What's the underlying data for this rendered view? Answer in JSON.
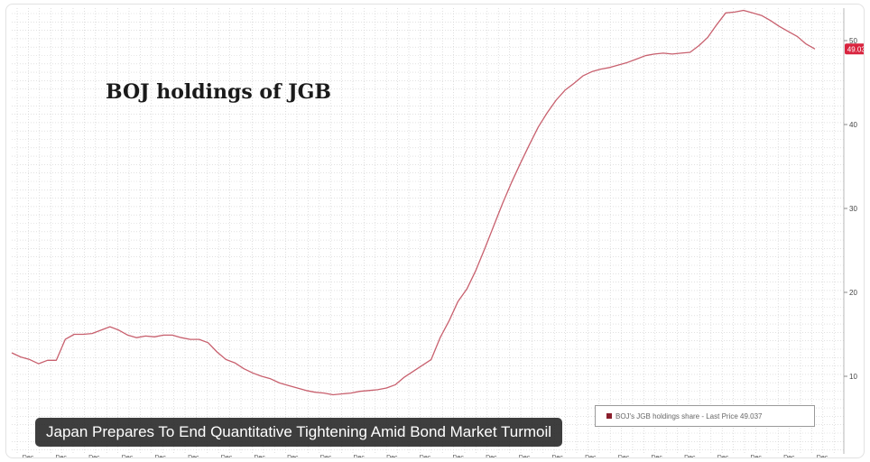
{
  "caption": "Japan Prepares To End Quantitative Tightening Amid Bond Market Turmoil",
  "chart_data": {
    "type": "line",
    "title": "BOJ holdings of JGB",
    "xlabel": "",
    "ylabel": "",
    "grid": true,
    "legend_placement": "bottom-right",
    "legend_text": "BOJ's JGB holdings share - Last Price 49.037",
    "last_price_label": "49.037",
    "ylim": [
      5,
      55
    ],
    "yticks": [
      10,
      20,
      30,
      40,
      50
    ],
    "ytick_labels": [
      "10",
      "20",
      "30",
      "40",
      "50"
    ],
    "xtick_labels": [
      "Dec",
      "Dec",
      "Dec",
      "Dec",
      "Dec",
      "Dec",
      "Dec",
      "Dec",
      "Dec",
      "Dec",
      "Dec",
      "Dec",
      "Dec",
      "Dec",
      "Dec",
      "Dec",
      "Dec",
      "Dec",
      "Dec",
      "Dec",
      "Dec",
      "Dec",
      "Dec",
      "Dec",
      "Dec"
    ],
    "x": [
      0,
      1,
      2,
      3,
      4,
      5,
      6,
      7,
      8,
      9,
      10,
      11,
      12,
      13,
      14,
      15,
      16,
      17,
      18,
      19,
      20,
      21,
      22,
      23,
      24,
      25,
      26,
      27,
      28,
      29,
      30,
      31,
      32,
      33,
      34,
      35,
      36,
      37,
      38,
      39,
      40,
      41,
      42,
      43,
      44,
      45,
      46,
      47,
      48,
      49,
      50,
      51,
      52,
      53,
      54,
      55,
      56,
      57,
      58,
      59,
      60,
      61,
      62,
      63,
      64,
      65,
      66,
      67,
      68,
      69,
      70,
      71,
      72,
      73,
      74,
      75,
      76,
      77,
      78,
      79,
      80,
      81,
      82,
      83,
      84,
      85,
      86,
      87,
      88,
      89,
      90
    ],
    "series": [
      {
        "color": "#c8606e",
        "values": [
          12.8,
          12.3,
          12.0,
          11.5,
          11.9,
          11.9,
          14.4,
          15.0,
          15.0,
          15.1,
          15.5,
          15.9,
          15.5,
          14.9,
          14.6,
          14.8,
          14.7,
          14.9,
          14.9,
          14.6,
          14.4,
          14.4,
          14.0,
          12.9,
          12.0,
          11.6,
          10.9,
          10.4,
          10.0,
          9.7,
          9.2,
          8.9,
          8.6,
          8.3,
          8.1,
          8.0,
          7.8,
          7.9,
          8.0,
          8.2,
          8.3,
          8.4,
          8.6,
          9.0,
          9.9,
          10.6,
          11.3,
          12.0,
          14.6,
          16.6,
          18.9,
          20.4,
          22.6,
          25.2,
          27.9,
          30.6,
          33.1,
          35.4,
          37.6,
          39.7,
          41.4,
          42.9,
          44.1,
          44.9,
          45.8,
          46.3,
          46.6,
          46.8,
          47.1,
          47.4,
          47.8,
          48.2,
          48.4,
          48.5,
          48.4,
          48.5,
          48.6,
          49.4,
          50.4,
          51.9,
          53.3,
          53.4,
          53.6,
          53.3,
          53.0,
          52.4,
          51.7,
          51.1,
          50.5,
          49.6,
          49.0
        ]
      }
    ]
  }
}
